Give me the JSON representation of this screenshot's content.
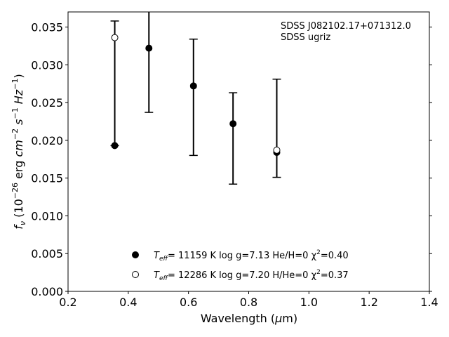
{
  "chart_data": {
    "type": "scatter",
    "title": "",
    "xlabel": "Wavelength (μm)",
    "ylabel": "f_ν (10^-26 erg cm^-2 s^-1 Hz^-1)",
    "xlim": [
      0.2,
      1.4
    ],
    "ylim": [
      0.0,
      0.037
    ],
    "xticks": [
      0.2,
      0.4,
      0.6,
      0.8,
      1.0,
      1.2,
      1.4
    ],
    "yticks": [
      0.0,
      0.005,
      0.01,
      0.015,
      0.02,
      0.025,
      0.03,
      0.035
    ],
    "x_tick_labels": [
      "0.2",
      "0.4",
      "0.6",
      "0.8",
      "1.0",
      "1.2",
      "1.4"
    ],
    "y_tick_labels": [
      "0.000",
      "0.005",
      "0.010",
      "0.015",
      "0.020",
      "0.025",
      "0.030",
      "0.035"
    ],
    "grid": false,
    "legend_position": "bottom-center",
    "annotations": [
      "SDSS J082102.17+071312.0",
      "SDSS ugriz"
    ],
    "observed": {
      "x": [
        0.3551,
        0.4686,
        0.6166,
        0.748,
        0.8932
      ],
      "y": [
        0.0193,
        0.0322,
        0.0271,
        0.0222,
        0.0185
      ],
      "err_low": [
        0.0193,
        0.0237,
        0.018,
        0.0142,
        0.0151
      ],
      "err_high": [
        0.0358,
        0.0375,
        0.0334,
        0.0263,
        0.0281
      ]
    },
    "series": [
      {
        "name": "Teff= 11159 K  log g=7.13  He/H=0  χ2=0.40",
        "marker": "filled",
        "x": [
          0.3551,
          0.4686,
          0.6166,
          0.748,
          0.8932
        ],
        "y": [
          0.0193,
          0.0322,
          0.0272,
          0.0222,
          0.0184
        ]
      },
      {
        "name": "Teff= 12286 K  log g=7.20  H/He=0  χ2=0.37",
        "marker": "open",
        "x": [
          0.3551,
          0.8932
        ],
        "y": [
          0.0336,
          0.0187
        ]
      }
    ]
  },
  "labels": {
    "xlabel_main": "Wavelength (",
    "xlabel_mu": "μ",
    "xlabel_unit": "m)",
    "ylabel_f": "f",
    "ylabel_nu": "ν",
    "ylabel_open": " (10",
    "ylabel_exp1": "−26",
    "ylabel_erg": " erg ",
    "ylabel_cm": "cm",
    "ylabel_exp2": "−2",
    "ylabel_s": " s",
    "ylabel_exp3": "−1",
    "ylabel_hz": " Hz",
    "ylabel_exp4": "−1",
    "ylabel_close": ")",
    "leg1_pre": "T",
    "leg1_sub": "eff",
    "leg1_mid": "= 11159 K  log g=7.13  He/H=0  χ",
    "leg1_sup": "2",
    "leg1_end": "=0.40",
    "leg2_pre": "T",
    "leg2_sub": "eff",
    "leg2_mid": "= 12286 K  log g=7.20  H/He=0  χ",
    "leg2_sup": "2",
    "leg2_end": "=0.37"
  },
  "colors": {
    "marker": "#000000",
    "open_fill": "#ffffff",
    "axes": "#000000"
  }
}
